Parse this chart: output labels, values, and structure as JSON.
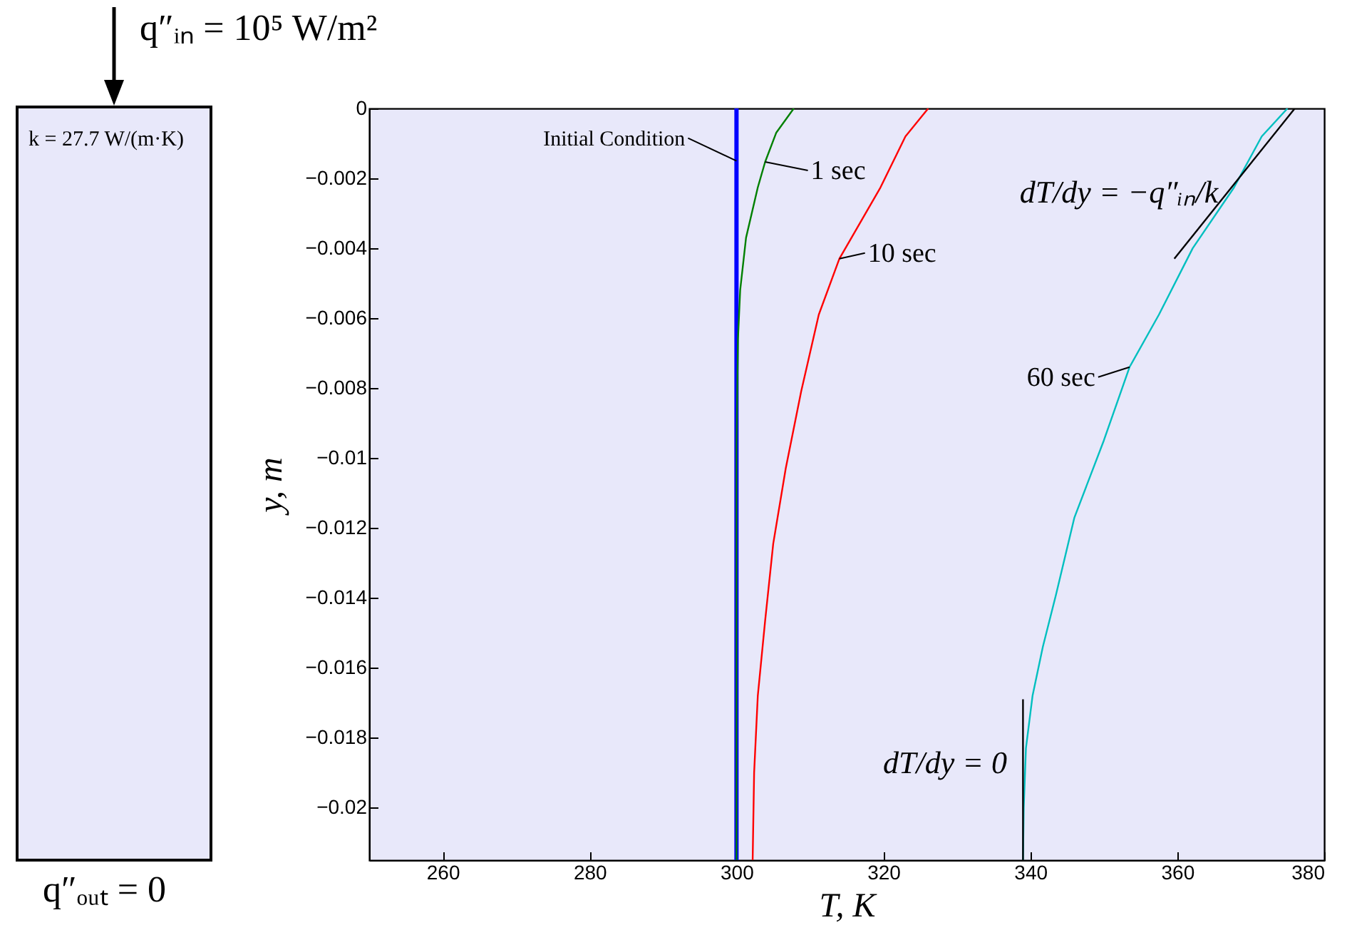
{
  "chart_data": {
    "type": "line",
    "xlabel": "T, K",
    "ylabel": "y, m",
    "xlim": [
      250,
      380
    ],
    "xticks": [
      260,
      280,
      300,
      320,
      340,
      360,
      380
    ],
    "ylim": [
      -0.0215,
      0
    ],
    "yticks": [
      0,
      -0.002,
      -0.004,
      -0.006,
      -0.008,
      -0.01,
      -0.012,
      -0.014,
      -0.016,
      -0.018,
      -0.02
    ],
    "grid": false,
    "line_style": "solid",
    "marker": "none",
    "series": [
      {
        "name": "Initial Condition",
        "color": "#0000ff",
        "x": [
          300,
          300,
          300
        ],
        "values": [
          0,
          -0.0015,
          -0.0215
        ]
      },
      {
        "name": "1 sec",
        "color": "#008000",
        "x": [
          307.8,
          305.4,
          303.9,
          302.9,
          301.3,
          300.5,
          300.2,
          300,
          300
        ],
        "values": [
          0,
          -0.0007,
          -0.00153,
          -0.00226,
          -0.0037,
          -0.0052,
          -0.0066,
          -0.0096,
          -0.0215
        ]
      },
      {
        "name": "10 sec",
        "color": "#ff0000",
        "x": [
          326.1,
          323.0,
          319.6,
          314.0,
          311.2,
          308.8,
          306.7,
          305.0,
          303.9,
          302.9,
          302.4,
          302.2
        ],
        "values": [
          0,
          -0.0008,
          -0.00226,
          -0.0043,
          -0.0059,
          -0.0081,
          -0.0103,
          -0.01245,
          -0.01465,
          -0.0168,
          -0.019,
          -0.0215
        ]
      },
      {
        "name": "60 sec",
        "color": "#00bfbf",
        "x": [
          375.0,
          371.5,
          367.7,
          362.1,
          357.5,
          353.5,
          350.0,
          346.0,
          343.5,
          341.7,
          340.3,
          339.4,
          339.1,
          339.0
        ],
        "values": [
          0,
          -0.0008,
          -0.00227,
          -0.004,
          -0.0059,
          -0.0074,
          -0.0095,
          -0.0117,
          -0.0139,
          -0.0154,
          -0.0168,
          -0.0183,
          -0.02,
          -0.0215
        ]
      },
      {
        "type": "line",
        "color": "#000000",
        "x": [
          376,
          359.6
        ],
        "values": [
          0,
          -0.0043
        ]
      },
      {
        "type": "line",
        "color": "#000000",
        "x": [
          339,
          339
        ],
        "values": [
          -0.0169,
          -0.0215
        ]
      }
    ],
    "annotations": [
      "q″ᵢₙ = 10⁵ W/m²",
      "k = 27.7 W/(m·K)",
      "q″ₒᵤₜ = 0",
      "dT/dy = −q″ᵢₙ/k",
      "dT/dy = 0"
    ]
  }
}
